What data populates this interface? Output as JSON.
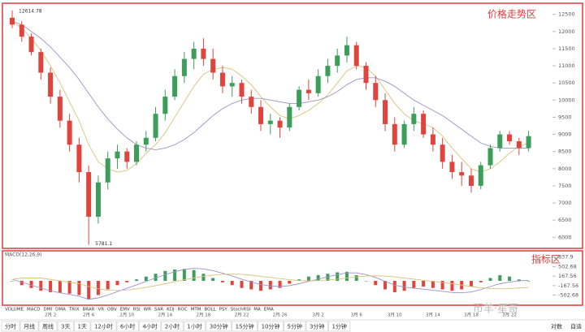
{
  "chart_data": [
    {
      "type": "candlestick",
      "title": "价格走势区",
      "categories": [
        null,
        null,
        null,
        null,
        "2月 2",
        null,
        null,
        null,
        "2月 6",
        null,
        null,
        null,
        "2月 10",
        null,
        null,
        null,
        "2月 14",
        null,
        null,
        null,
        "2月 18",
        null,
        null,
        null,
        "2月 22",
        null,
        null,
        null,
        "2月 26",
        null,
        null,
        null,
        "3月 2",
        null,
        null,
        null,
        "3月 6",
        null,
        null,
        null,
        "3月 10",
        null,
        null,
        null,
        "3月 14",
        null,
        null,
        null,
        "3月 18",
        null,
        null,
        null,
        "3月 22",
        null,
        null
      ],
      "open": [
        12400,
        12200,
        11850,
        11400,
        10800,
        10100,
        9400,
        8700,
        7900,
        6600,
        7600,
        8300,
        8500,
        8200,
        8700,
        8900,
        9600,
        10100,
        10700,
        11200,
        11500,
        11200,
        10800,
        10400,
        10500,
        10100,
        9800,
        9300,
        9400,
        9200,
        9800,
        10300,
        10200,
        10700,
        11000,
        11300,
        11600,
        11000,
        10500,
        10000,
        9300,
        8700,
        9300,
        9600,
        9000,
        8700,
        8200,
        7900,
        7800,
        7500,
        8100,
        8600,
        9000,
        8800,
        8600
      ],
      "high": [
        12614.78,
        12300,
        11950,
        11500,
        10950,
        10300,
        9600,
        8900,
        8100,
        7800,
        8500,
        8700,
        8600,
        8800,
        9100,
        9800,
        10300,
        10900,
        11400,
        11700,
        11800,
        11500,
        11000,
        10700,
        10600,
        10300,
        10000,
        9600,
        9500,
        9900,
        10400,
        10600,
        10900,
        11200,
        11500,
        11850,
        11700,
        11100,
        10700,
        10200,
        9500,
        9400,
        9800,
        9700,
        9200,
        8900,
        8400,
        8200,
        8000,
        8200,
        8700,
        9100,
        9100,
        8900,
        9100
      ],
      "low": [
        12100,
        11700,
        11300,
        10600,
        9900,
        9200,
        8500,
        7600,
        5781.1,
        6400,
        7400,
        8000,
        8000,
        8100,
        8500,
        8800,
        9400,
        10000,
        10500,
        10900,
        11000,
        10600,
        10200,
        10100,
        9900,
        9600,
        9100,
        9000,
        8900,
        9100,
        9700,
        10000,
        10100,
        10500,
        10800,
        11100,
        10900,
        10300,
        9800,
        9100,
        8500,
        8600,
        9100,
        8900,
        8500,
        8000,
        7700,
        7500,
        7300,
        7400,
        8000,
        8500,
        8700,
        8400,
        8500
      ],
      "close": [
        12200,
        11850,
        11400,
        10800,
        10100,
        9400,
        8700,
        7900,
        6600,
        7600,
        8300,
        8500,
        8200,
        8700,
        8900,
        9600,
        10100,
        10700,
        11200,
        11500,
        11200,
        10800,
        10400,
        10500,
        10100,
        9800,
        9300,
        9400,
        9200,
        9800,
        10300,
        10200,
        10700,
        11000,
        11300,
        11600,
        11000,
        10500,
        10000,
        9300,
        8700,
        9300,
        9600,
        9000,
        8700,
        8200,
        7900,
        7800,
        7500,
        8100,
        8600,
        9000,
        8800,
        8600,
        8950
      ],
      "up_color": "#3c9e5a",
      "down_color": "#e0443c",
      "ma_lines": [
        {
          "color": "#d9c27a",
          "values": [
            12300,
            12100,
            11800,
            11450,
            11000,
            10500,
            9950,
            9400,
            8700,
            8200,
            8000,
            7900,
            7950,
            8150,
            8450,
            8700,
            9050,
            9500,
            9950,
            10400,
            10750,
            10900,
            10950,
            10900,
            10700,
            10450,
            10100,
            9800,
            9550,
            9450,
            9550,
            9700,
            9900,
            10150,
            10500,
            10850,
            11000,
            10950,
            10700,
            10300,
            9900,
            9600,
            9400,
            9300,
            9200,
            8950,
            8600,
            8300,
            8000,
            7900,
            8000,
            8200,
            8450,
            8650,
            8750
          ]
        },
        {
          "color": "#9b93c9",
          "values": [
            12300,
            12200,
            12000,
            11800,
            11550,
            11250,
            10950,
            10600,
            10200,
            9800,
            9450,
            9150,
            8900,
            8700,
            8600,
            8550,
            8600,
            8700,
            8850,
            9050,
            9300,
            9550,
            9750,
            9900,
            10000,
            10050,
            10050,
            10000,
            9950,
            9900,
            9900,
            9950,
            10000,
            10100,
            10250,
            10450,
            10600,
            10650,
            10650,
            10550,
            10400,
            10200,
            10000,
            9850,
            9700,
            9550,
            9350,
            9150,
            8950,
            8750,
            8650,
            8600,
            8600,
            8600,
            8600
          ]
        }
      ],
      "annotations": [
        "12614.78",
        "5781.1"
      ],
      "ylim": [
        5700,
        12800
      ],
      "yticks": [
        6000,
        6500,
        7000,
        7500,
        8000,
        8500,
        9000,
        9500,
        10000,
        10500,
        11000,
        11500,
        12000,
        12500
      ]
    },
    {
      "type": "macd",
      "title": "指标区",
      "subtitle": "MACD(12,26,9)",
      "values": [
        0,
        -150,
        -250,
        -350,
        -400,
        -420,
        -450,
        -500,
        -650,
        -500,
        -300,
        -150,
        -50,
        50,
        150,
        250,
        350,
        400,
        420,
        380,
        250,
        100,
        -50,
        -150,
        -250,
        -300,
        -350,
        -300,
        -250,
        -100,
        50,
        150,
        200,
        250,
        300,
        320,
        200,
        0,
        -150,
        -300,
        -400,
        -350,
        -250,
        -200,
        -250,
        -300,
        -350,
        -300,
        -200,
        -50,
        100,
        200,
        150,
        50,
        0
      ],
      "up_color": "#3c9e5a",
      "down_color": "#e0443c",
      "dif": {
        "color": "#9b93c9",
        "values": [
          50,
          -50,
          -150,
          -250,
          -350,
          -420,
          -480,
          -540,
          -650,
          -600,
          -500,
          -380,
          -260,
          -140,
          -20,
          100,
          220,
          320,
          400,
          440,
          420,
          360,
          270,
          170,
          60,
          -40,
          -130,
          -180,
          -200,
          -170,
          -100,
          -20,
          60,
          140,
          220,
          280,
          280,
          220,
          120,
          -20,
          -150,
          -220,
          -260,
          -290,
          -330,
          -370,
          -410,
          -420,
          -390,
          -310,
          -200,
          -100,
          -40,
          0,
          20
        ]
      },
      "dea": {
        "color": "#d9c27a",
        "values": [
          50,
          100,
          100,
          100,
          50,
          0,
          -50,
          -100,
          -200,
          -280,
          -330,
          -340,
          -320,
          -280,
          -230,
          -170,
          -100,
          -30,
          40,
          100,
          160,
          200,
          230,
          240,
          230,
          200,
          160,
          120,
          80,
          40,
          10,
          0,
          10,
          30,
          60,
          100,
          140,
          170,
          180,
          170,
          140,
          100,
          60,
          20,
          -20,
          -60,
          -100,
          -150,
          -200,
          -240,
          -270,
          -280,
          -270,
          -250,
          -230
        ]
      },
      "ylim": [
        -800,
        1000
      ],
      "yticks": [
        837.9,
        502.68,
        167.56,
        -167.56,
        -502.68
      ]
    }
  ],
  "indicator_tabs": [
    "VOLUME",
    "MACD",
    "DMI",
    "DMA",
    "TRIX",
    "BRAR",
    "VR",
    "OBV",
    "EMV",
    "RSI",
    "WR",
    "SAR",
    "KDJ",
    "ROC",
    "MTM",
    "BOLL",
    "PSY",
    "StochRSI",
    "MA",
    "EMA"
  ],
  "timeframe_tabs": [
    "分时",
    "月线",
    "周线",
    "3天",
    "1天",
    "12小时",
    "6小时",
    "4小时",
    "2小时",
    "1小时",
    "30分钟",
    "15分钟",
    "10分钟",
    "5分钟",
    "3分钟",
    "1分钟"
  ],
  "right_options": [
    "对数",
    "自适"
  ],
  "watermark": "币羊·星哥"
}
